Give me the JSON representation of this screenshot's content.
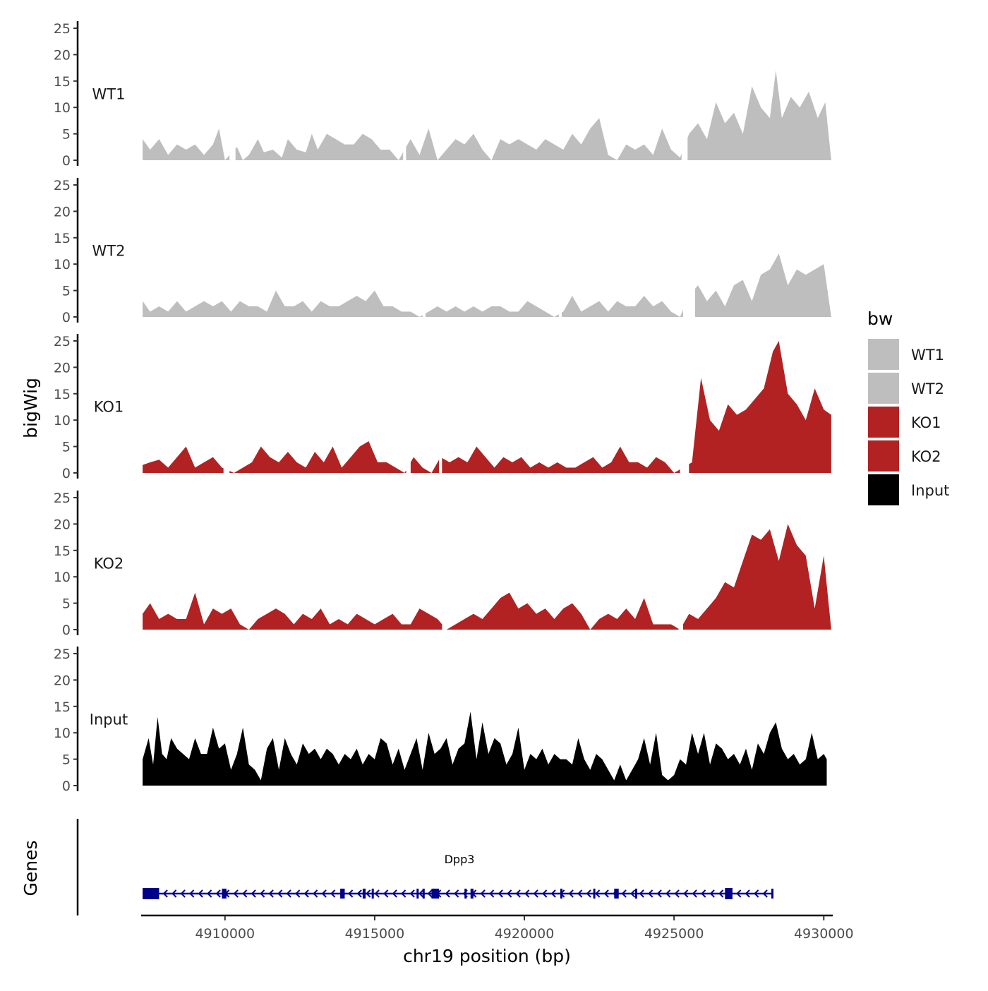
{
  "chart_data": {
    "type": "area",
    "ylabel": "bigWig",
    "xlabel": "chr19 position (bp)",
    "xlim": [
      4907200,
      4930300
    ],
    "x_ticks": [
      4910000,
      4915000,
      4920000,
      4925000,
      4930000
    ],
    "x_tick_labels": [
      "4910000",
      "4915000",
      "4920000",
      "4925000",
      "4930000"
    ],
    "ylim": [
      0,
      25
    ],
    "y_ticks": [
      0,
      5,
      10,
      15,
      20,
      25
    ],
    "y_tick_labels": [
      "0",
      "5",
      "10",
      "15",
      "20",
      "25"
    ],
    "genes_label": "Genes",
    "legend": {
      "title": "bw",
      "entries": [
        {
          "label": "WT1",
          "color": "#bebebe"
        },
        {
          "label": "WT2",
          "color": "#bebebe"
        },
        {
          "label": "KO1",
          "color": "#b22222"
        },
        {
          "label": "KO2",
          "color": "#b22222"
        },
        {
          "label": "Input",
          "color": "#000000"
        }
      ]
    },
    "series": [
      {
        "name": "WT1",
        "color": "#bebebe",
        "x": [
          4907250,
          4907500,
          4907800,
          4908100,
          4908400,
          4908700,
          4909000,
          4909300,
          4909600,
          4909800,
          4910000,
          4910400,
          4910600,
          4910800,
          4911100,
          4911300,
          4911600,
          4911900,
          4912100,
          4912400,
          4912700,
          4912900,
          4913100,
          4913400,
          4913700,
          4914000,
          4914300,
          4914600,
          4914900,
          4915200,
          4915500,
          4915800,
          4916200,
          4916500,
          4916800,
          4917100,
          4917400,
          4917700,
          4918000,
          4918300,
          4918600,
          4918900,
          4919200,
          4919500,
          4919800,
          4920100,
          4920400,
          4920700,
          4921000,
          4921300,
          4921600,
          4921900,
          4922200,
          4922500,
          4922800,
          4923100,
          4923400,
          4923700,
          4924000,
          4924300,
          4924600,
          4924900,
          4925200,
          4925500,
          4925800,
          4926100,
          4926400,
          4926700,
          4927000,
          4927300,
          4927600,
          4927900,
          4928200,
          4928400,
          4928600,
          4928900,
          4929200,
          4929500,
          4929800,
          4930050,
          4930250
        ],
        "values": [
          4,
          2,
          4,
          1,
          3,
          2,
          3,
          1,
          3,
          6,
          0,
          2.5,
          0,
          1,
          4,
          1.5,
          2,
          0.5,
          4,
          2,
          1.5,
          5,
          2,
          5,
          4,
          3,
          3,
          5,
          4,
          2,
          2,
          0,
          4,
          1,
          6,
          0,
          2,
          4,
          3,
          5,
          2,
          0,
          4,
          3,
          4,
          3,
          2,
          4,
          3,
          2,
          5,
          3,
          6,
          8,
          1,
          0,
          3,
          2,
          3,
          1,
          6,
          2,
          0.5,
          5,
          7,
          4,
          11,
          7,
          9,
          5,
          14,
          10,
          8,
          17,
          8,
          12,
          10,
          13,
          8,
          11,
          0
        ],
        "gaps": [
          [
            4910150,
            4910350
          ],
          [
            4915950,
            4916050
          ],
          [
            4925250,
            4925450
          ]
        ]
      },
      {
        "name": "WT2",
        "color": "#bebebe",
        "x": [
          4907250,
          4907500,
          4907800,
          4908100,
          4908400,
          4908700,
          4909000,
          4909300,
          4909600,
          4909900,
          4910200,
          4910500,
          4910800,
          4911100,
          4911400,
          4911700,
          4912000,
          4912300,
          4912600,
          4912900,
          4913200,
          4913500,
          4913800,
          4914100,
          4914400,
          4914700,
          4915000,
          4915300,
          4915600,
          4915900,
          4916200,
          4916500,
          4916800,
          4917100,
          4917400,
          4917700,
          4918000,
          4918300,
          4918600,
          4918900,
          4919200,
          4919500,
          4919800,
          4920100,
          4920400,
          4920700,
          4921000,
          4921300,
          4921600,
          4921900,
          4922200,
          4922500,
          4922800,
          4923100,
          4923400,
          4923700,
          4924000,
          4924300,
          4924600,
          4924900,
          4925200,
          4925500,
          4925800,
          4926100,
          4926400,
          4926700,
          4927000,
          4927300,
          4927600,
          4927900,
          4928200,
          4928500,
          4928800,
          4929100,
          4929400,
          4929700,
          4930000,
          4930250
        ],
        "values": [
          3,
          1,
          2,
          1,
          3,
          1,
          2,
          3,
          2,
          3,
          1,
          3,
          2,
          2,
          1,
          5,
          2,
          2,
          3,
          1,
          3,
          2,
          2,
          3,
          4,
          3,
          5,
          2,
          2,
          1,
          1,
          0,
          1,
          2,
          1,
          2,
          1,
          2,
          1,
          2,
          2,
          1,
          1,
          3,
          2,
          1,
          0,
          1,
          4,
          1,
          2,
          3,
          1,
          3,
          2,
          2,
          4,
          2,
          3,
          1,
          0,
          4,
          6,
          3,
          5,
          2,
          6,
          7,
          3,
          8,
          9,
          12,
          6,
          9,
          8,
          9,
          10,
          0
        ],
        "gaps": [
          [
            4916600,
            4916700
          ],
          [
            4921150,
            4921250
          ],
          [
            4925300,
            4925700
          ]
        ]
      },
      {
        "name": "KO1",
        "color": "#b22222",
        "x": [
          4907250,
          4907500,
          4907800,
          4908100,
          4908400,
          4908700,
          4909000,
          4909300,
          4909600,
          4909900,
          4910300,
          4910600,
          4910900,
          4911200,
          4911500,
          4911800,
          4912100,
          4912400,
          4912700,
          4913000,
          4913300,
          4913600,
          4913900,
          4914200,
          4914500,
          4914800,
          4915100,
          4915400,
          4915700,
          4916000,
          4916300,
          4916600,
          4916900,
          4917200,
          4917500,
          4917800,
          4918100,
          4918400,
          4918700,
          4919000,
          4919300,
          4919600,
          4919900,
          4920200,
          4920500,
          4920800,
          4921100,
          4921400,
          4921700,
          4922000,
          4922300,
          4922600,
          4922900,
          4923200,
          4923500,
          4923800,
          4924100,
          4924400,
          4924700,
          4925000,
          4925300,
          4925600,
          4925900,
          4926200,
          4926500,
          4926800,
          4927100,
          4927400,
          4927700,
          4928000,
          4928300,
          4928500,
          4928800,
          4929100,
          4929400,
          4929700,
          4930000,
          4930250
        ],
        "values": [
          1.5,
          2,
          2.5,
          1,
          3,
          5,
          1,
          2,
          3,
          1,
          0,
          1,
          2,
          5,
          3,
          2,
          4,
          2,
          1,
          4,
          2,
          5,
          1,
          3,
          5,
          6,
          2,
          2,
          1,
          0,
          3,
          1,
          0,
          3,
          2,
          3,
          2,
          5,
          3,
          1,
          3,
          2,
          3,
          1,
          2,
          1,
          2,
          1,
          1,
          2,
          3,
          1,
          2,
          5,
          2,
          2,
          1,
          3,
          2,
          0,
          1,
          2,
          18,
          10,
          8,
          13,
          11,
          12,
          14,
          16,
          23,
          25,
          15,
          13,
          10,
          16,
          12,
          11
        ],
        "gaps": [
          [
            4909950,
            4910150
          ],
          [
            4916050,
            4916200
          ],
          [
            4917150,
            4917250
          ],
          [
            4925200,
            4925500
          ]
        ]
      },
      {
        "name": "KO2",
        "color": "#b22222",
        "x": [
          4907250,
          4907500,
          4907800,
          4908100,
          4908400,
          4908700,
          4909000,
          4909300,
          4909600,
          4909900,
          4910200,
          4910500,
          4910800,
          4911100,
          4911400,
          4911700,
          4912000,
          4912300,
          4912600,
          4912900,
          4913200,
          4913500,
          4913800,
          4914100,
          4914400,
          4914700,
          4915000,
          4915300,
          4915600,
          4915900,
          4916200,
          4916500,
          4916800,
          4917100,
          4917400,
          4917700,
          4918000,
          4918300,
          4918600,
          4918900,
          4919200,
          4919500,
          4919800,
          4920100,
          4920400,
          4920700,
          4921000,
          4921300,
          4921600,
          4921900,
          4922200,
          4922500,
          4922800,
          4923100,
          4923400,
          4923700,
          4924000,
          4924300,
          4924600,
          4924900,
          4925200,
          4925500,
          4925800,
          4926100,
          4926400,
          4926700,
          4927000,
          4927300,
          4927600,
          4927900,
          4928200,
          4928500,
          4928800,
          4929100,
          4929400,
          4929700,
          4930000,
          4930250
        ],
        "values": [
          3,
          5,
          2,
          3,
          2,
          2,
          7,
          1,
          4,
          3,
          4,
          1,
          0,
          2,
          3,
          4,
          3,
          1,
          3,
          2,
          4,
          1,
          2,
          1,
          3,
          2,
          1,
          2,
          3,
          1,
          1,
          4,
          3,
          2,
          0,
          1,
          2,
          3,
          2,
          4,
          6,
          7,
          4,
          5,
          3,
          4,
          2,
          4,
          5,
          3,
          0,
          2,
          3,
          2,
          4,
          2,
          6,
          1,
          1,
          1,
          0,
          3,
          2,
          4,
          6,
          9,
          8,
          13,
          18,
          17,
          19,
          13,
          20,
          16,
          14,
          4,
          14,
          0
        ],
        "gaps": [
          [
            4917250,
            4917400
          ],
          [
            4925150,
            4925300
          ]
        ]
      },
      {
        "name": "Input",
        "color": "#000000",
        "x": [
          4907250,
          4907450,
          4907600,
          4907750,
          4907900,
          4908050,
          4908200,
          4908400,
          4908600,
          4908800,
          4909000,
          4909200,
          4909400,
          4909600,
          4909800,
          4910000,
          4910200,
          4910400,
          4910600,
          4910800,
          4911000,
          4911200,
          4911400,
          4911600,
          4911800,
          4912000,
          4912200,
          4912400,
          4912600,
          4912800,
          4913000,
          4913200,
          4913400,
          4913600,
          4913800,
          4914000,
          4914200,
          4914400,
          4914600,
          4914800,
          4915000,
          4915200,
          4915400,
          4915600,
          4915800,
          4916000,
          4916200,
          4916400,
          4916600,
          4916800,
          4917000,
          4917200,
          4917400,
          4917600,
          4917800,
          4918000,
          4918200,
          4918400,
          4918600,
          4918800,
          4919000,
          4919200,
          4919400,
          4919600,
          4919800,
          4920000,
          4920200,
          4920400,
          4920600,
          4920800,
          4921000,
          4921200,
          4921400,
          4921600,
          4921800,
          4922000,
          4922200,
          4922400,
          4922600,
          4922800,
          4923000,
          4923200,
          4923400,
          4923600,
          4923800,
          4924000,
          4924200,
          4924400,
          4924600,
          4924800,
          4925000,
          4925200,
          4925400,
          4925600,
          4925800,
          4926000,
          4926200,
          4926400,
          4926600,
          4926800,
          4927000,
          4927200,
          4927400,
          4927600,
          4927800,
          4928000,
          4928200,
          4928400,
          4928600,
          4928800,
          4929000,
          4929200,
          4929400,
          4929600,
          4929800,
          4930000,
          4930100
        ],
        "values": [
          5,
          9,
          4,
          13,
          6,
          5,
          9,
          7,
          6,
          5,
          9,
          6,
          6,
          11,
          7,
          8,
          3,
          6,
          11,
          4,
          3,
          1,
          7,
          9,
          3,
          9,
          6,
          4,
          8,
          6,
          7,
          5,
          7,
          6,
          4,
          6,
          5,
          7,
          4,
          6,
          5,
          9,
          8,
          4,
          7,
          3,
          6,
          9,
          3,
          10,
          6,
          7,
          9,
          4,
          7,
          8,
          14,
          5,
          12,
          6,
          9,
          8,
          4,
          6,
          11,
          3,
          6,
          5,
          7,
          4,
          6,
          5,
          5,
          4,
          9,
          5,
          3,
          6,
          5,
          3,
          1,
          4,
          1,
          3,
          5,
          9,
          4,
          10,
          2,
          1,
          2,
          5,
          4,
          10,
          6,
          10,
          4,
          8,
          7,
          5,
          6,
          4,
          7,
          3,
          8,
          6,
          10,
          12,
          7,
          5,
          6,
          4,
          5,
          10,
          5,
          6,
          5
        ],
        "gaps": []
      }
    ],
    "gene": {
      "name": "Dpp3",
      "strand": "-",
      "start": 4907250,
      "end": 4928300,
      "exons": [
        [
          4907250,
          4907800
        ],
        [
          4909900,
          4910050
        ],
        [
          4913850,
          4914000
        ],
        [
          4914600,
          4914700
        ],
        [
          4914900,
          4914950
        ],
        [
          4916400,
          4916450
        ],
        [
          4916600,
          4916650
        ],
        [
          4916900,
          4917150
        ],
        [
          4918000,
          4918050
        ],
        [
          4918200,
          4918300
        ],
        [
          4921200,
          4921250
        ],
        [
          4922300,
          4922350
        ],
        [
          4923000,
          4923150
        ],
        [
          4923700,
          4923750
        ],
        [
          4926700,
          4926950
        ],
        [
          4928250,
          4928300
        ]
      ]
    }
  }
}
